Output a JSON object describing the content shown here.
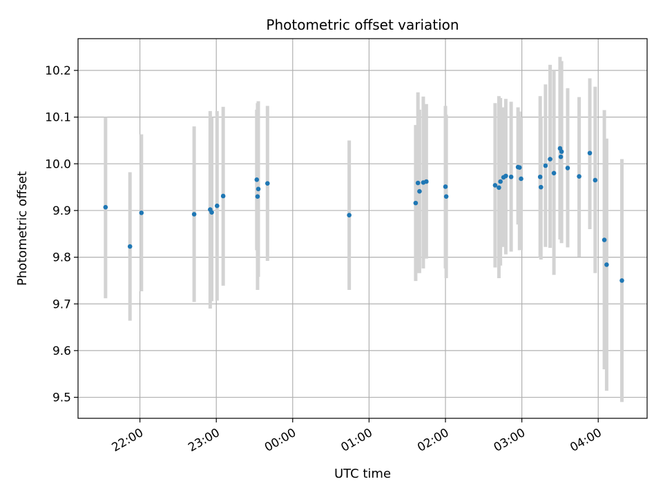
{
  "chart_data": {
    "type": "scatter",
    "title": "Photometric offset variation",
    "xlabel": "UTC time",
    "ylabel": "Photometric offset",
    "x_unit": "UTC time of day (hours after 00:00)",
    "xlim": [
      -2.81,
      4.64
    ],
    "ylim": [
      9.455,
      10.268
    ],
    "xticks": [
      {
        "value": -2.0,
        "label": "22:00"
      },
      {
        "value": -1.0,
        "label": "23:00"
      },
      {
        "value": 0.0,
        "label": "00:00"
      },
      {
        "value": 1.0,
        "label": "01:00"
      },
      {
        "value": 2.0,
        "label": "02:00"
      },
      {
        "value": 3.0,
        "label": "03:00"
      },
      {
        "value": 4.0,
        "label": "04:00"
      }
    ],
    "yticks": [
      {
        "value": 9.5,
        "label": "9.5"
      },
      {
        "value": 9.6,
        "label": "9.6"
      },
      {
        "value": 9.7,
        "label": "9.7"
      },
      {
        "value": 9.8,
        "label": "9.8"
      },
      {
        "value": 9.9,
        "label": "9.9"
      },
      {
        "value": 10.0,
        "label": "10.0"
      },
      {
        "value": 10.1,
        "label": "10.1"
      },
      {
        "value": 10.2,
        "label": "10.2"
      }
    ],
    "grid": true,
    "marker_color": "#1f77b4",
    "errorbar_color": "#d3d3d3",
    "points": [
      {
        "x": -2.45,
        "y": 9.907,
        "lo": 9.712,
        "hi": 10.1
      },
      {
        "x": -2.13,
        "y": 9.823,
        "lo": 9.664,
        "hi": 9.982
      },
      {
        "x": -1.98,
        "y": 9.895,
        "lo": 9.727,
        "hi": 10.063
      },
      {
        "x": -1.29,
        "y": 9.892,
        "lo": 9.704,
        "hi": 10.08
      },
      {
        "x": -1.08,
        "y": 9.902,
        "lo": 9.69,
        "hi": 10.113
      },
      {
        "x": -1.06,
        "y": 9.896,
        "lo": 9.706,
        "hi": 10.1
      },
      {
        "x": -0.99,
        "y": 9.91,
        "lo": 9.707,
        "hi": 10.113
      },
      {
        "x": -0.91,
        "y": 9.931,
        "lo": 9.739,
        "hi": 10.122
      },
      {
        "x": -0.47,
        "y": 9.966,
        "lo": 9.815,
        "hi": 10.116
      },
      {
        "x": -0.46,
        "y": 9.93,
        "lo": 9.73,
        "hi": 10.13
      },
      {
        "x": -0.45,
        "y": 9.946,
        "lo": 9.758,
        "hi": 10.134
      },
      {
        "x": -0.33,
        "y": 9.958,
        "lo": 9.792,
        "hi": 10.124
      },
      {
        "x": 0.74,
        "y": 9.89,
        "lo": 9.73,
        "hi": 10.05
      },
      {
        "x": 1.61,
        "y": 9.916,
        "lo": 9.749,
        "hi": 10.083
      },
      {
        "x": 1.64,
        "y": 9.959,
        "lo": 9.766,
        "hi": 10.153
      },
      {
        "x": 1.66,
        "y": 9.941,
        "lo": 9.766,
        "hi": 10.116
      },
      {
        "x": 1.71,
        "y": 9.96,
        "lo": 9.776,
        "hi": 10.144
      },
      {
        "x": 1.75,
        "y": 9.962,
        "lo": 9.797,
        "hi": 10.128
      },
      {
        "x": 2.0,
        "y": 9.951,
        "lo": 9.776,
        "hi": 10.124
      },
      {
        "x": 2.01,
        "y": 9.93,
        "lo": 9.755,
        "hi": 10.105
      },
      {
        "x": 2.65,
        "y": 9.954,
        "lo": 9.778,
        "hi": 10.13
      },
      {
        "x": 2.7,
        "y": 9.949,
        "lo": 9.755,
        "hi": 10.145
      },
      {
        "x": 2.72,
        "y": 9.962,
        "lo": 9.782,
        "hi": 10.141
      },
      {
        "x": 2.76,
        "y": 9.971,
        "lo": 9.822,
        "hi": 10.121
      },
      {
        "x": 2.79,
        "y": 9.974,
        "lo": 9.806,
        "hi": 10.139
      },
      {
        "x": 2.86,
        "y": 9.972,
        "lo": 9.812,
        "hi": 10.133
      },
      {
        "x": 2.95,
        "y": 9.993,
        "lo": 9.87,
        "hi": 10.121
      },
      {
        "x": 2.97,
        "y": 9.992,
        "lo": 9.815,
        "hi": 10.112
      },
      {
        "x": 2.99,
        "y": 9.968,
        "lo": 9.815,
        "hi": 10.1
      },
      {
        "x": 3.24,
        "y": 9.972,
        "lo": 9.8,
        "hi": 10.145
      },
      {
        "x": 3.25,
        "y": 9.95,
        "lo": 9.795,
        "hi": 10.1
      },
      {
        "x": 3.31,
        "y": 9.996,
        "lo": 9.822,
        "hi": 10.17
      },
      {
        "x": 3.37,
        "y": 10.01,
        "lo": 9.82,
        "hi": 10.212
      },
      {
        "x": 3.42,
        "y": 9.98,
        "lo": 9.762,
        "hi": 10.2
      },
      {
        "x": 3.5,
        "y": 10.033,
        "lo": 9.838,
        "hi": 10.229
      },
      {
        "x": 3.51,
        "y": 10.015,
        "lo": 9.84,
        "hi": 10.19
      },
      {
        "x": 3.52,
        "y": 10.026,
        "lo": 9.83,
        "hi": 10.22
      },
      {
        "x": 3.6,
        "y": 9.991,
        "lo": 9.821,
        "hi": 10.162
      },
      {
        "x": 3.75,
        "y": 9.973,
        "lo": 9.801,
        "hi": 10.143
      },
      {
        "x": 3.89,
        "y": 10.023,
        "lo": 9.86,
        "hi": 10.183
      },
      {
        "x": 3.96,
        "y": 9.965,
        "lo": 9.766,
        "hi": 10.165
      },
      {
        "x": 4.08,
        "y": 9.837,
        "lo": 9.56,
        "hi": 10.115
      },
      {
        "x": 4.11,
        "y": 9.784,
        "lo": 9.514,
        "hi": 10.054
      },
      {
        "x": 4.31,
        "y": 9.75,
        "lo": 9.49,
        "hi": 10.01
      }
    ]
  }
}
